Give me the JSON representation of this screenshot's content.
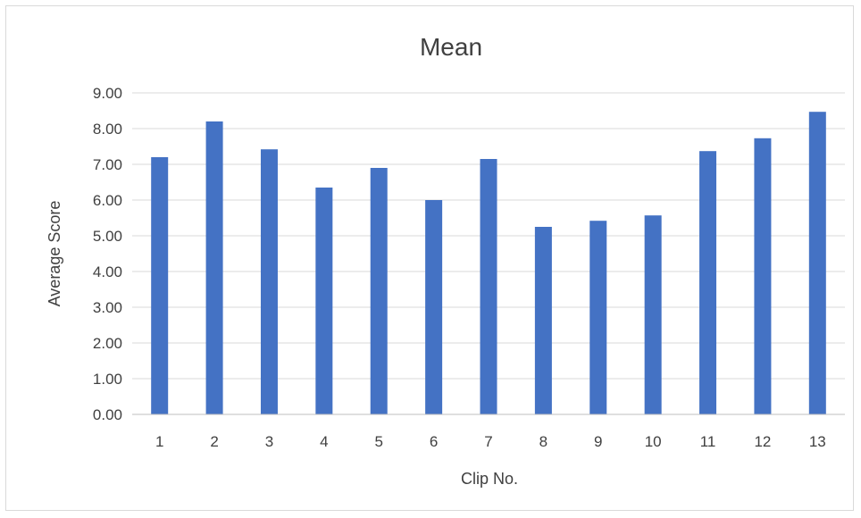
{
  "colors": {
    "bar": "#4472C4",
    "gridline": "#d9d9d9",
    "axis_line": "#bfbfbf",
    "text": "#404040",
    "border": "#d9d9d9"
  },
  "chart_data": {
    "type": "bar",
    "title": "Mean",
    "xlabel": "Clip No.",
    "ylabel": "Average Score",
    "categories": [
      "1",
      "2",
      "3",
      "4",
      "5",
      "6",
      "7",
      "8",
      "9",
      "10",
      "11",
      "12",
      "13"
    ],
    "values": [
      7.2,
      8.2,
      7.42,
      6.35,
      6.9,
      6.0,
      7.15,
      5.25,
      5.42,
      5.57,
      7.37,
      7.73,
      8.47
    ],
    "ylim": [
      0,
      9
    ],
    "ytick_step": 1,
    "yticks": [
      "0.00",
      "1.00",
      "2.00",
      "3.00",
      "4.00",
      "5.00",
      "6.00",
      "7.00",
      "8.00",
      "9.00"
    ],
    "grid": true,
    "legend": "none"
  }
}
